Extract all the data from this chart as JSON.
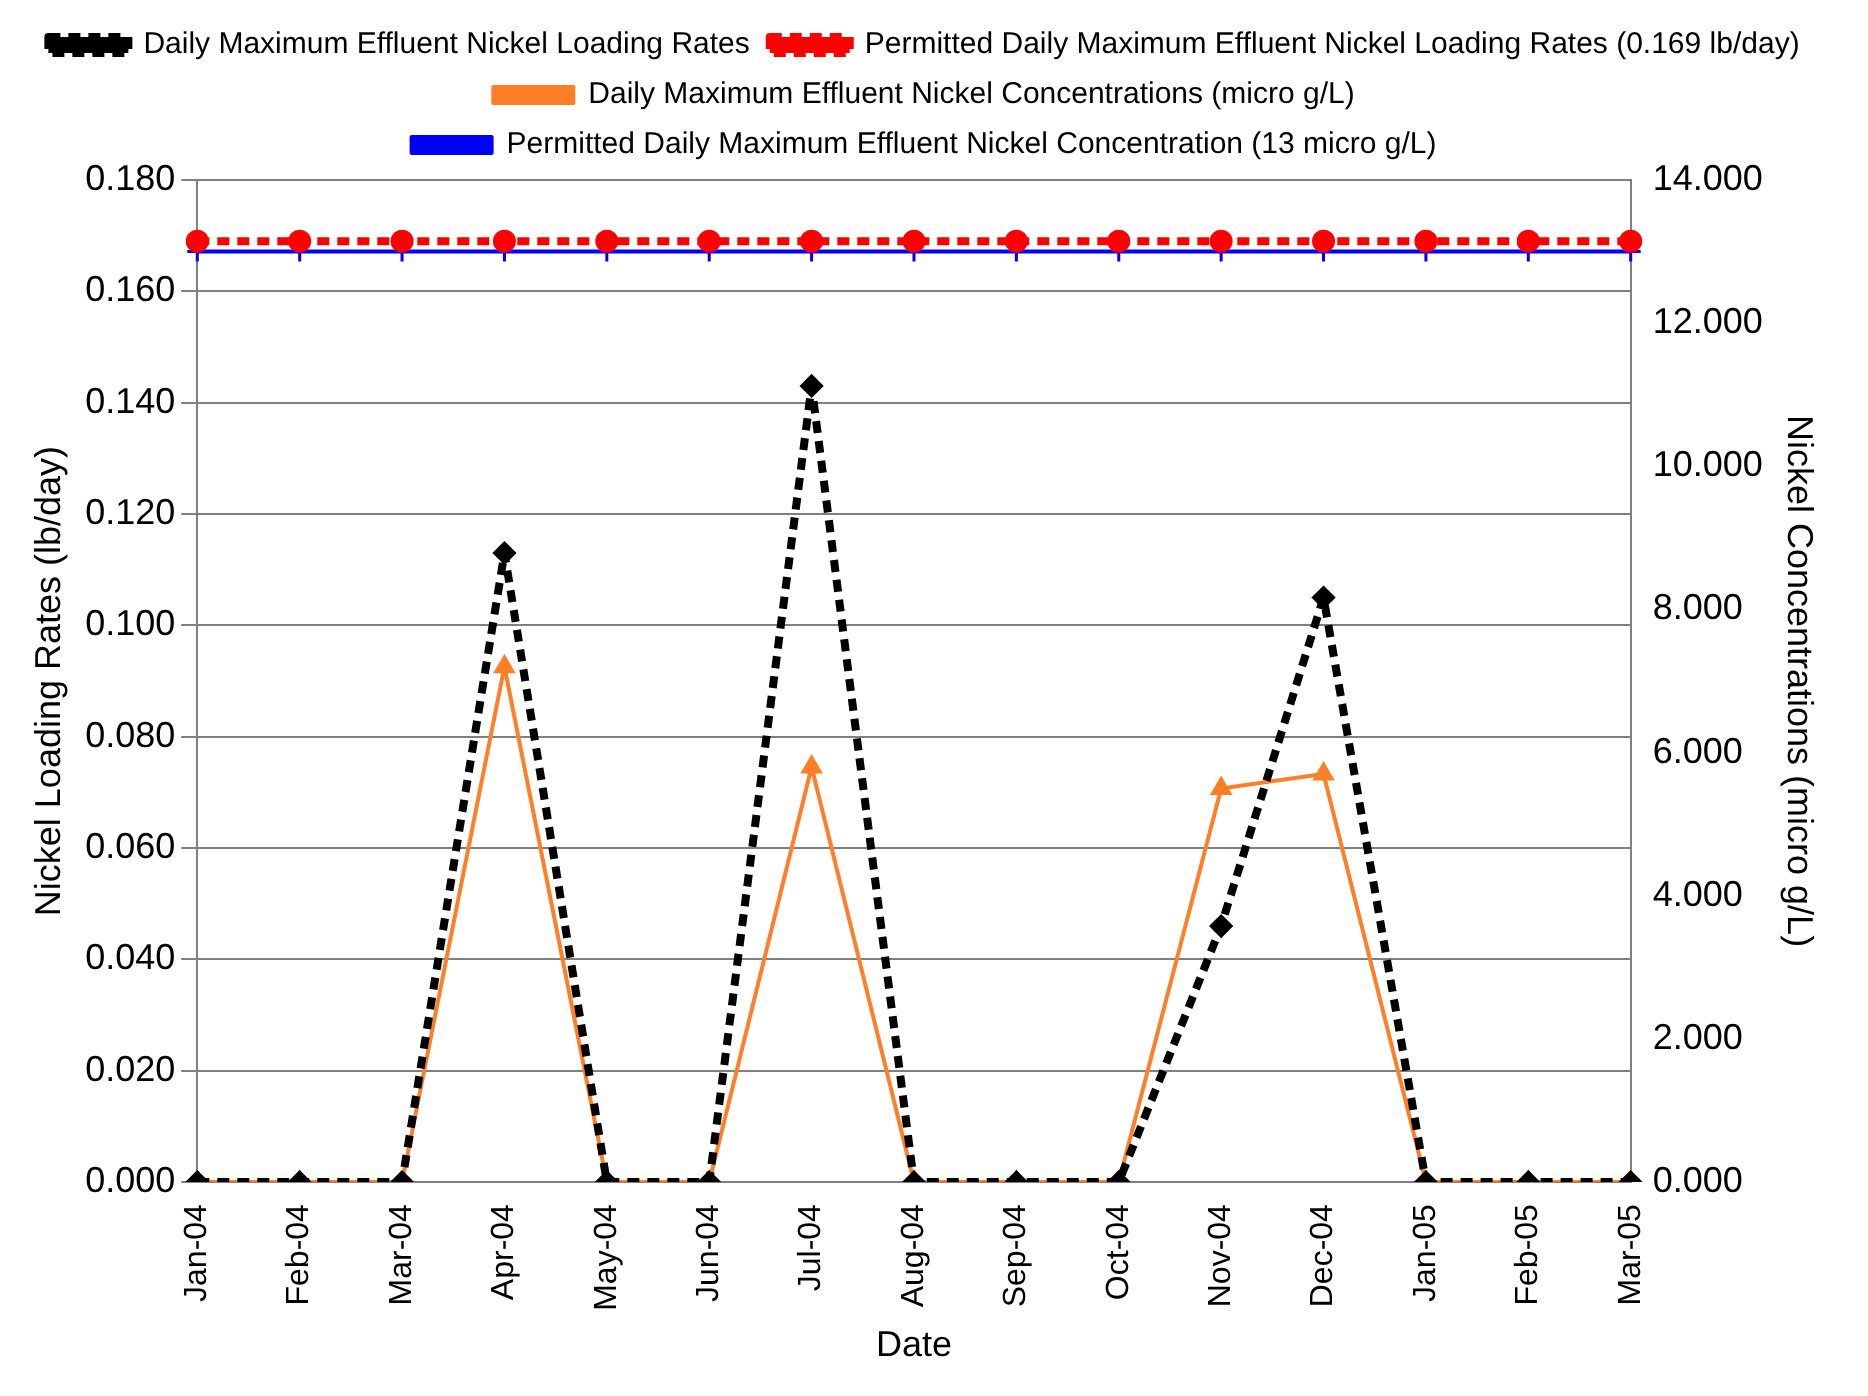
{
  "chart_data": {
    "type": "line",
    "categories": [
      "Jan-04",
      "Feb-04",
      "Mar-04",
      "Apr-04",
      "May-04",
      "Jun-04",
      "Jul-04",
      "Aug-04",
      "Sep-04",
      "Oct-04",
      "Nov-04",
      "Dec-04",
      "Jan-05",
      "Feb-05",
      "Mar-05"
    ],
    "series": [
      {
        "name": "Daily Maximum Effluent Nickel Loading Rates",
        "color": "#000000",
        "marker": "diamond",
        "line_style": "dashed",
        "values": [
          0,
          0,
          0,
          0.113,
          0,
          0,
          0.143,
          0,
          0,
          0,
          0.046,
          0.105,
          0,
          0,
          0
        ]
      },
      {
        "name": "Permitted Daily Maximum Effluent Nickel Loading Rates (0.169 lb/day)",
        "color": "#ff0000",
        "marker": "circle",
        "line_style": "dashed",
        "values": [
          0.169,
          0.169,
          0.169,
          0.169,
          0.169,
          0.169,
          0.169,
          0.169,
          0.169,
          0.169,
          0.169,
          0.169,
          0.169,
          0.169,
          0.169
        ]
      },
      {
        "name": "Daily Maximum Effluent Nickel Concentrations (micro g/L)",
        "color": "#ff7f27",
        "marker": "triangle",
        "line_style": "solid",
        "axis": "y2",
        "values": [
          0,
          0,
          0,
          7.2,
          0,
          0,
          5.8,
          0,
          0,
          0,
          5.5,
          5.7,
          0,
          0,
          0
        ]
      },
      {
        "name": "Permitted Daily Maximum Effluent Nickel Concentration (13 micro g/L)",
        "color": "#0000ff",
        "marker": "cross",
        "line_style": "solid",
        "axis": "y2",
        "values": [
          13,
          13,
          13,
          13,
          13,
          13,
          13,
          13,
          13,
          13,
          13,
          13,
          13,
          13,
          13
        ]
      }
    ],
    "xlabel": "Date",
    "ylabel": "Nickel Loading Rates (lb/day)",
    "y2label": "Nickel Concentrations (micro g/L)",
    "ylim": [
      0,
      0.18
    ],
    "yticks": [
      {
        "value": 0,
        "label": "0.000"
      },
      {
        "value": 0.02,
        "label": "0.020"
      },
      {
        "value": 0.04,
        "label": "0.040"
      },
      {
        "value": 0.06,
        "label": "0.060"
      },
      {
        "value": 0.08,
        "label": "0.080"
      },
      {
        "value": 0.1,
        "label": "0.100"
      },
      {
        "value": 0.12,
        "label": "0.120"
      },
      {
        "value": 0.14,
        "label": "0.140"
      },
      {
        "value": 0.16,
        "label": "0.160"
      },
      {
        "value": 0.18,
        "label": "0.180"
      }
    ],
    "y2lim": [
      0,
      14
    ],
    "y2ticks": [
      {
        "value": 0,
        "label": "0.000"
      },
      {
        "value": 2,
        "label": "2.000"
      },
      {
        "value": 4,
        "label": "4.000"
      },
      {
        "value": 6,
        "label": "6.000"
      },
      {
        "value": 8,
        "label": "8.000"
      },
      {
        "value": 10,
        "label": "10.000"
      },
      {
        "value": 12,
        "label": "12.000"
      },
      {
        "value": 14,
        "label": "14.000"
      }
    ],
    "grid": "y",
    "legend": "top"
  }
}
